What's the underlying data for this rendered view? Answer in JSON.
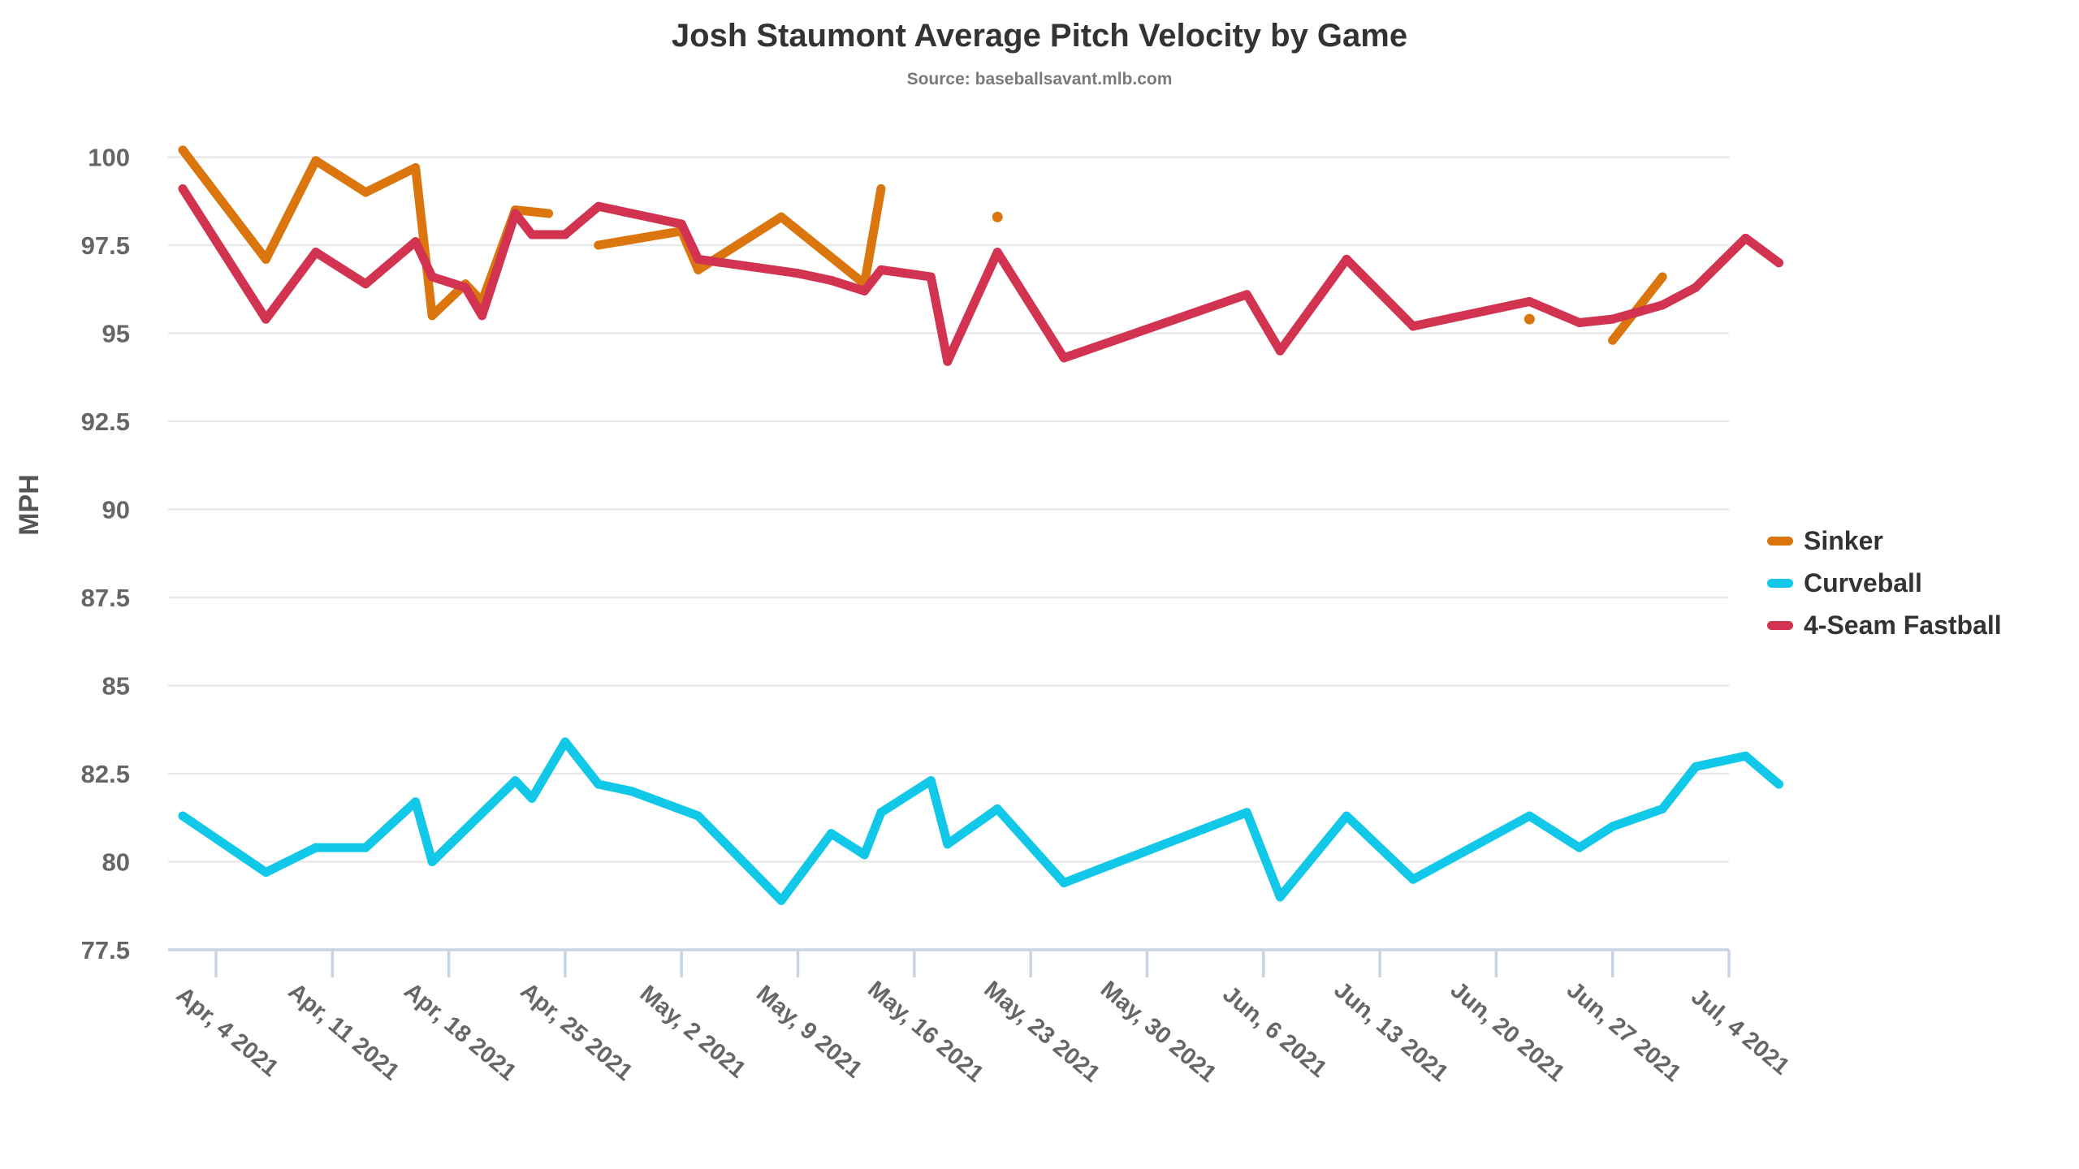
{
  "title": "Josh Staumont Average Pitch Velocity by Game",
  "subtitle": "Source: baseballsavant.mlb.com",
  "colors": {
    "background": "#ffffff",
    "title_text": "#333333",
    "subtitle_text": "#7a7a7a",
    "axis_line": "#c8d4e3",
    "gridline": "#e9e9ec",
    "tick_text": "#666666",
    "y_title_text": "#555555",
    "legend_text": "#333333",
    "sinker": "#db760e",
    "curveball": "#12c8e8",
    "fastball": "#d23350"
  },
  "chart_data": {
    "type": "line",
    "title": "Josh Staumont Average Pitch Velocity by Game",
    "subtitle": "Source: baseballsavant.mlb.com",
    "xlabel": "",
    "ylabel": "MPH",
    "ylim": [
      77.5,
      101.1
    ],
    "x_range": [
      "Apr 1 2021",
      "Jul 8 2021"
    ],
    "grid": true,
    "legend_position": "right",
    "point_format": [
      "date",
      "day_index_from_Apr_1_2021",
      "mph"
    ],
    "yticks": [
      {
        "v": 100,
        "label": "100"
      },
      {
        "v": 97.5,
        "label": "97.5"
      },
      {
        "v": 95,
        "label": "95"
      },
      {
        "v": 92.5,
        "label": "92.5"
      },
      {
        "v": 90,
        "label": "90"
      },
      {
        "v": 87.5,
        "label": "87.5"
      },
      {
        "v": 85,
        "label": "85"
      },
      {
        "v": 82.5,
        "label": "82.5"
      },
      {
        "v": 80,
        "label": "80"
      },
      {
        "v": 77.5,
        "label": "77.5"
      }
    ],
    "xticks": [
      {
        "day": 3,
        "label": "Apr, 4 2021"
      },
      {
        "day": 10,
        "label": "Apr, 11 2021"
      },
      {
        "day": 17,
        "label": "Apr, 18 2021"
      },
      {
        "day": 24,
        "label": "Apr, 25 2021"
      },
      {
        "day": 31,
        "label": "May, 2 2021"
      },
      {
        "day": 38,
        "label": "May, 9 2021"
      },
      {
        "day": 45,
        "label": "May, 16 2021"
      },
      {
        "day": 52,
        "label": "May, 23 2021"
      },
      {
        "day": 59,
        "label": "May, 30 2021"
      },
      {
        "day": 66,
        "label": "Jun, 6 2021"
      },
      {
        "day": 73,
        "label": "Jun, 13 2021"
      },
      {
        "day": 80,
        "label": "Jun, 20 2021"
      },
      {
        "day": 87,
        "label": "Jun, 27 2021"
      },
      {
        "day": 94,
        "label": "Jul, 4 2021"
      }
    ],
    "series": [
      {
        "name": "Sinker",
        "color": "#db760e",
        "segments": [
          [
            [
              "Apr 2",
              1,
              100.2
            ],
            [
              "Apr 7",
              6,
              97.1
            ],
            [
              "Apr 10",
              9,
              99.9
            ],
            [
              "Apr 13",
              12,
              99.0
            ],
            [
              "Apr 16",
              15,
              99.7
            ],
            [
              "Apr 17",
              16,
              95.5
            ],
            [
              "Apr 19",
              18,
              96.4
            ],
            [
              "Apr 20",
              19,
              95.9
            ],
            [
              "Apr 22",
              21,
              98.5
            ],
            [
              "Apr 24",
              23,
              98.4
            ]
          ],
          [
            [
              "Apr 27",
              26,
              97.5
            ],
            [
              "May 2",
              31,
              97.9
            ],
            [
              "May 3",
              32,
              96.8
            ],
            [
              "May 8",
              37,
              98.3
            ],
            [
              "May 13",
              42,
              96.4
            ],
            [
              "May 14",
              43,
              99.1
            ]
          ],
          [
            [
              "May 21",
              50,
              98.3
            ]
          ],
          [
            [
              "Jun 22",
              82,
              95.4
            ]
          ],
          [
            [
              "Jun 27",
              87,
              94.8
            ],
            [
              "Jun 30",
              90,
              96.6
            ]
          ]
        ]
      },
      {
        "name": "Curveball",
        "color": "#12c8e8",
        "segments": [
          [
            [
              "Apr 2",
              1,
              81.3
            ],
            [
              "Apr 7",
              6,
              79.7
            ],
            [
              "Apr 10",
              9,
              80.4
            ],
            [
              "Apr 13",
              12,
              80.4
            ],
            [
              "Apr 16",
              15,
              81.7
            ],
            [
              "Apr 17",
              16,
              80.0
            ],
            [
              "Apr 22",
              21,
              82.3
            ],
            [
              "Apr 23",
              22,
              81.8
            ],
            [
              "Apr 25",
              24,
              83.4
            ],
            [
              "Apr 27",
              26,
              82.2
            ],
            [
              "Apr 29",
              28,
              82.0
            ],
            [
              "May 3",
              32,
              81.3
            ],
            [
              "May 8",
              37,
              78.9
            ],
            [
              "May 11",
              40,
              80.8
            ],
            [
              "May 13",
              42,
              80.2
            ],
            [
              "May 14",
              43,
              81.4
            ],
            [
              "May 17",
              46,
              82.3
            ],
            [
              "May 18",
              47,
              80.5
            ],
            [
              "May 21",
              50,
              81.5
            ],
            [
              "May 25",
              54,
              79.4
            ],
            [
              "Jun 5",
              65,
              81.4
            ],
            [
              "Jun 7",
              67,
              79.0
            ],
            [
              "Jun 11",
              71,
              81.3
            ],
            [
              "Jun 15",
              75,
              79.5
            ],
            [
              "Jun 22",
              82,
              81.3
            ],
            [
              "Jun 25",
              85,
              80.4
            ],
            [
              "Jun 27",
              87,
              81.0
            ],
            [
              "Jun 30",
              90,
              81.5
            ],
            [
              "Jul 2",
              92,
              82.7
            ],
            [
              "Jul 5",
              95,
              83.0
            ],
            [
              "Jul 7",
              97,
              82.2
            ]
          ]
        ]
      },
      {
        "name": "4-Seam Fastball",
        "color": "#d23350",
        "segments": [
          [
            [
              "Apr 2",
              1,
              99.1
            ],
            [
              "Apr 7",
              6,
              95.4
            ],
            [
              "Apr 10",
              9,
              97.3
            ],
            [
              "Apr 13",
              12,
              96.4
            ],
            [
              "Apr 16",
              15,
              97.6
            ],
            [
              "Apr 17",
              16,
              96.6
            ],
            [
              "Apr 19",
              18,
              96.3
            ],
            [
              "Apr 20",
              19,
              95.5
            ],
            [
              "Apr 22",
              21,
              98.4
            ],
            [
              "Apr 23",
              22,
              97.8
            ],
            [
              "Apr 25",
              24,
              97.8
            ],
            [
              "Apr 27",
              26,
              98.6
            ],
            [
              "May 2",
              31,
              98.1
            ],
            [
              "May 3",
              32,
              97.1
            ],
            [
              "May 9",
              38,
              96.7
            ],
            [
              "May 11",
              40,
              96.5
            ],
            [
              "May 13",
              42,
              96.2
            ],
            [
              "May 14",
              43,
              96.8
            ],
            [
              "May 17",
              46,
              96.6
            ],
            [
              "May 18",
              47,
              94.2
            ],
            [
              "May 21",
              50,
              97.3
            ],
            [
              "May 25",
              54,
              94.3
            ],
            [
              "Jun 5",
              65,
              96.1
            ],
            [
              "Jun 7",
              67,
              94.5
            ],
            [
              "Jun 11",
              71,
              97.1
            ],
            [
              "Jun 15",
              75,
              95.2
            ],
            [
              "Jun 22",
              82,
              95.9
            ],
            [
              "Jun 25",
              85,
              95.3
            ],
            [
              "Jun 27",
              87,
              95.4
            ],
            [
              "Jun 30",
              90,
              95.8
            ],
            [
              "Jul 2",
              92,
              96.3
            ],
            [
              "Jul 5",
              95,
              97.7
            ],
            [
              "Jul 7",
              97,
              97.0
            ]
          ]
        ]
      }
    ]
  }
}
